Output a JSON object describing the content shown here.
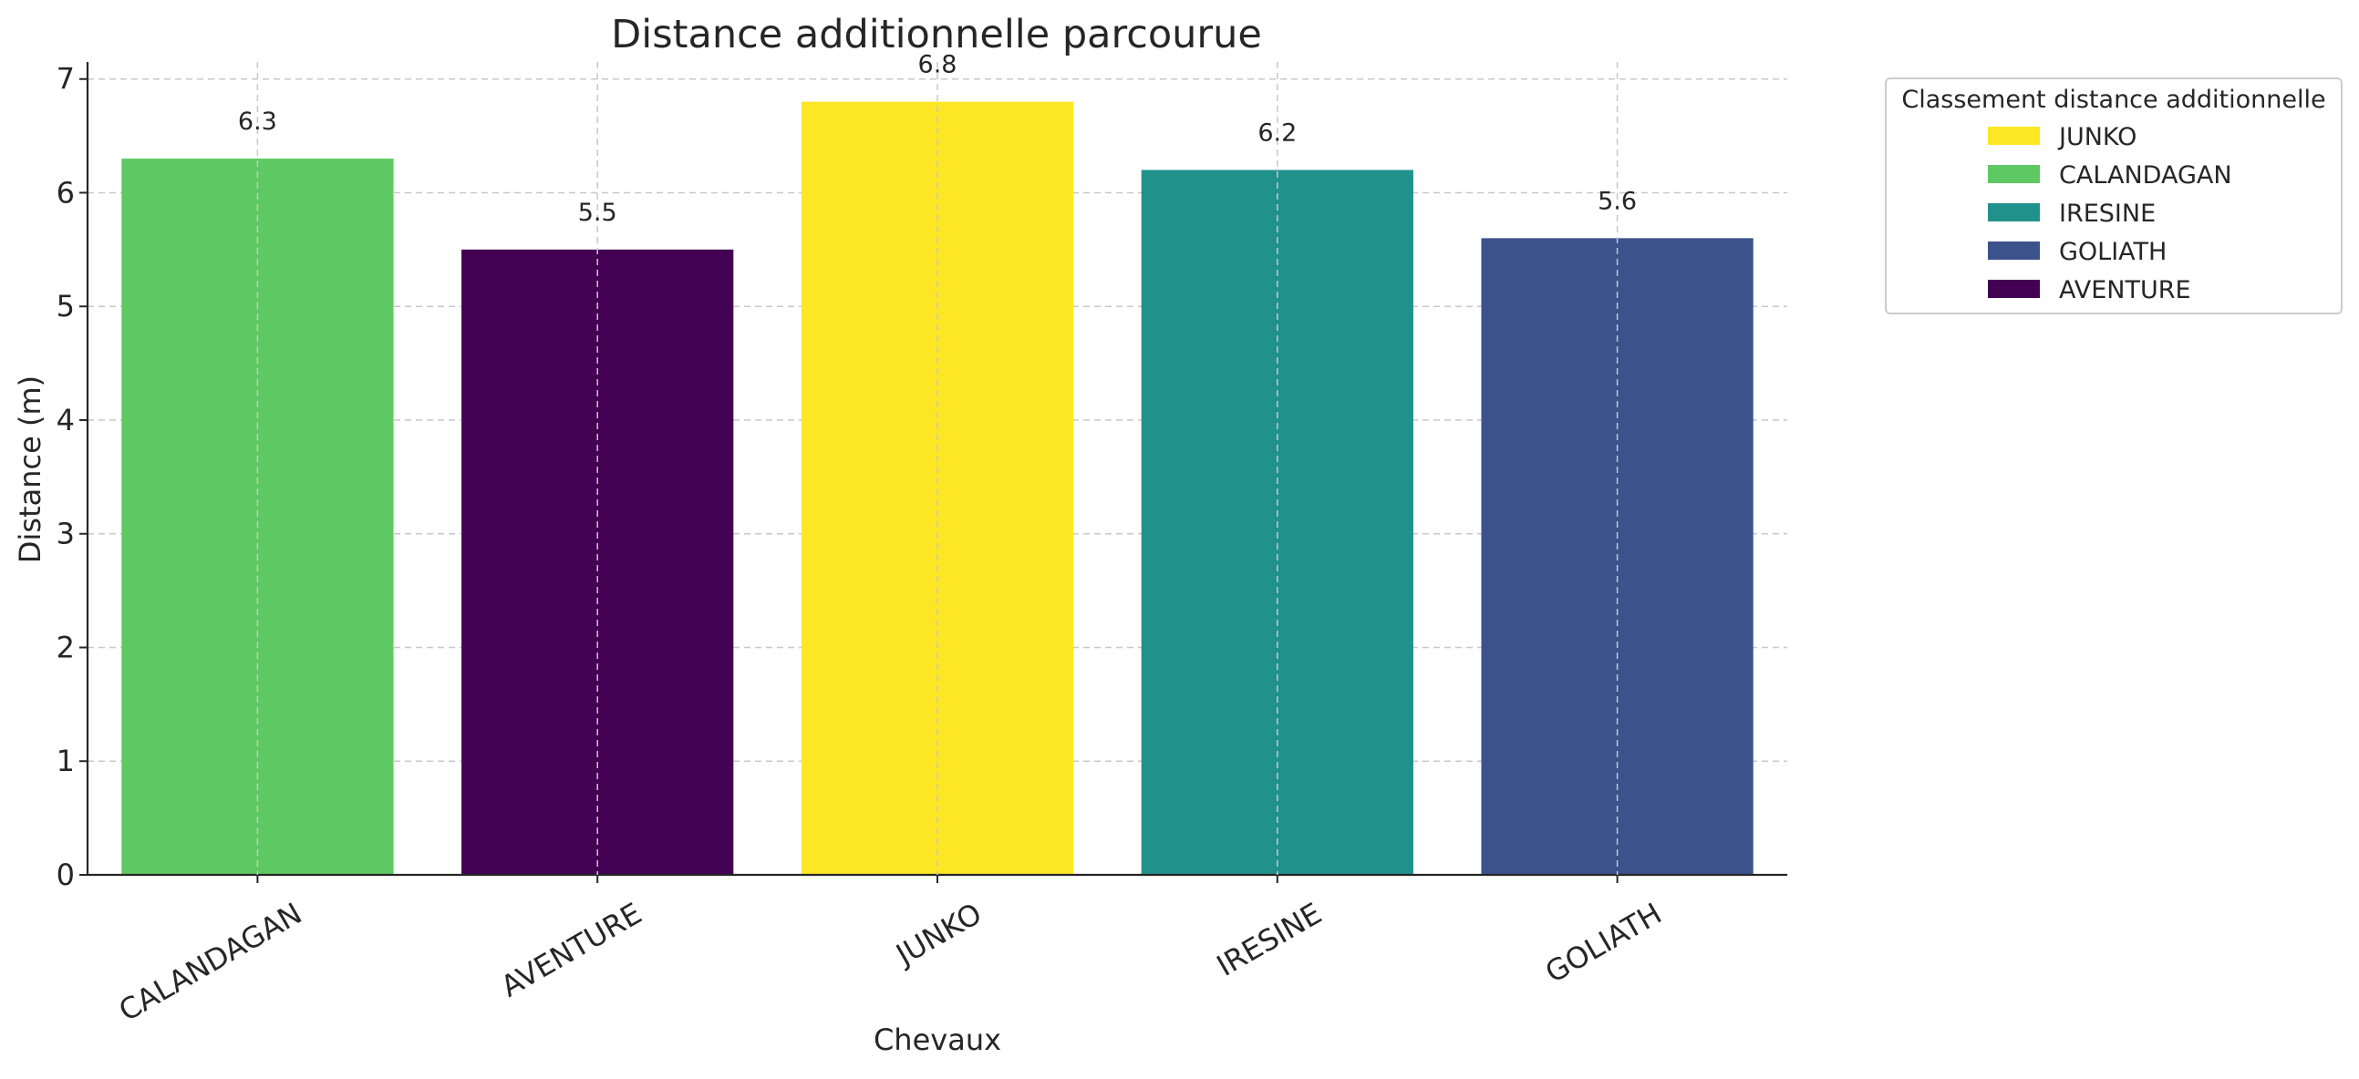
{
  "chart_data": {
    "type": "bar",
    "title": "Distance additionnelle parcourue",
    "xlabel": "Chevaux",
    "ylabel": "Distance (m)",
    "categories": [
      "CALANDAGAN",
      "AVENTURE",
      "JUNKO",
      "IRESINE",
      "GOLIATH"
    ],
    "values": [
      6.3,
      5.5,
      6.8,
      6.2,
      5.6
    ],
    "bar_colors": [
      "#5ec962",
      "#440154",
      "#fde725",
      "#21918c",
      "#3b528b"
    ],
    "ylim": [
      0,
      7.15
    ],
    "yticks": [
      0,
      1,
      2,
      3,
      4,
      5,
      6,
      7
    ],
    "grid": true,
    "legend": {
      "title": "Classement distance additionnelle",
      "placement": "outside-upper-right",
      "entries": [
        {
          "label": "JUNKO",
          "color": "#fde725"
        },
        {
          "label": "CALANDAGAN",
          "color": "#5ec962"
        },
        {
          "label": "IRESINE",
          "color": "#21918c"
        },
        {
          "label": "GOLIATH",
          "color": "#3b528b"
        },
        {
          "label": "AVENTURE",
          "color": "#440154"
        }
      ]
    }
  }
}
